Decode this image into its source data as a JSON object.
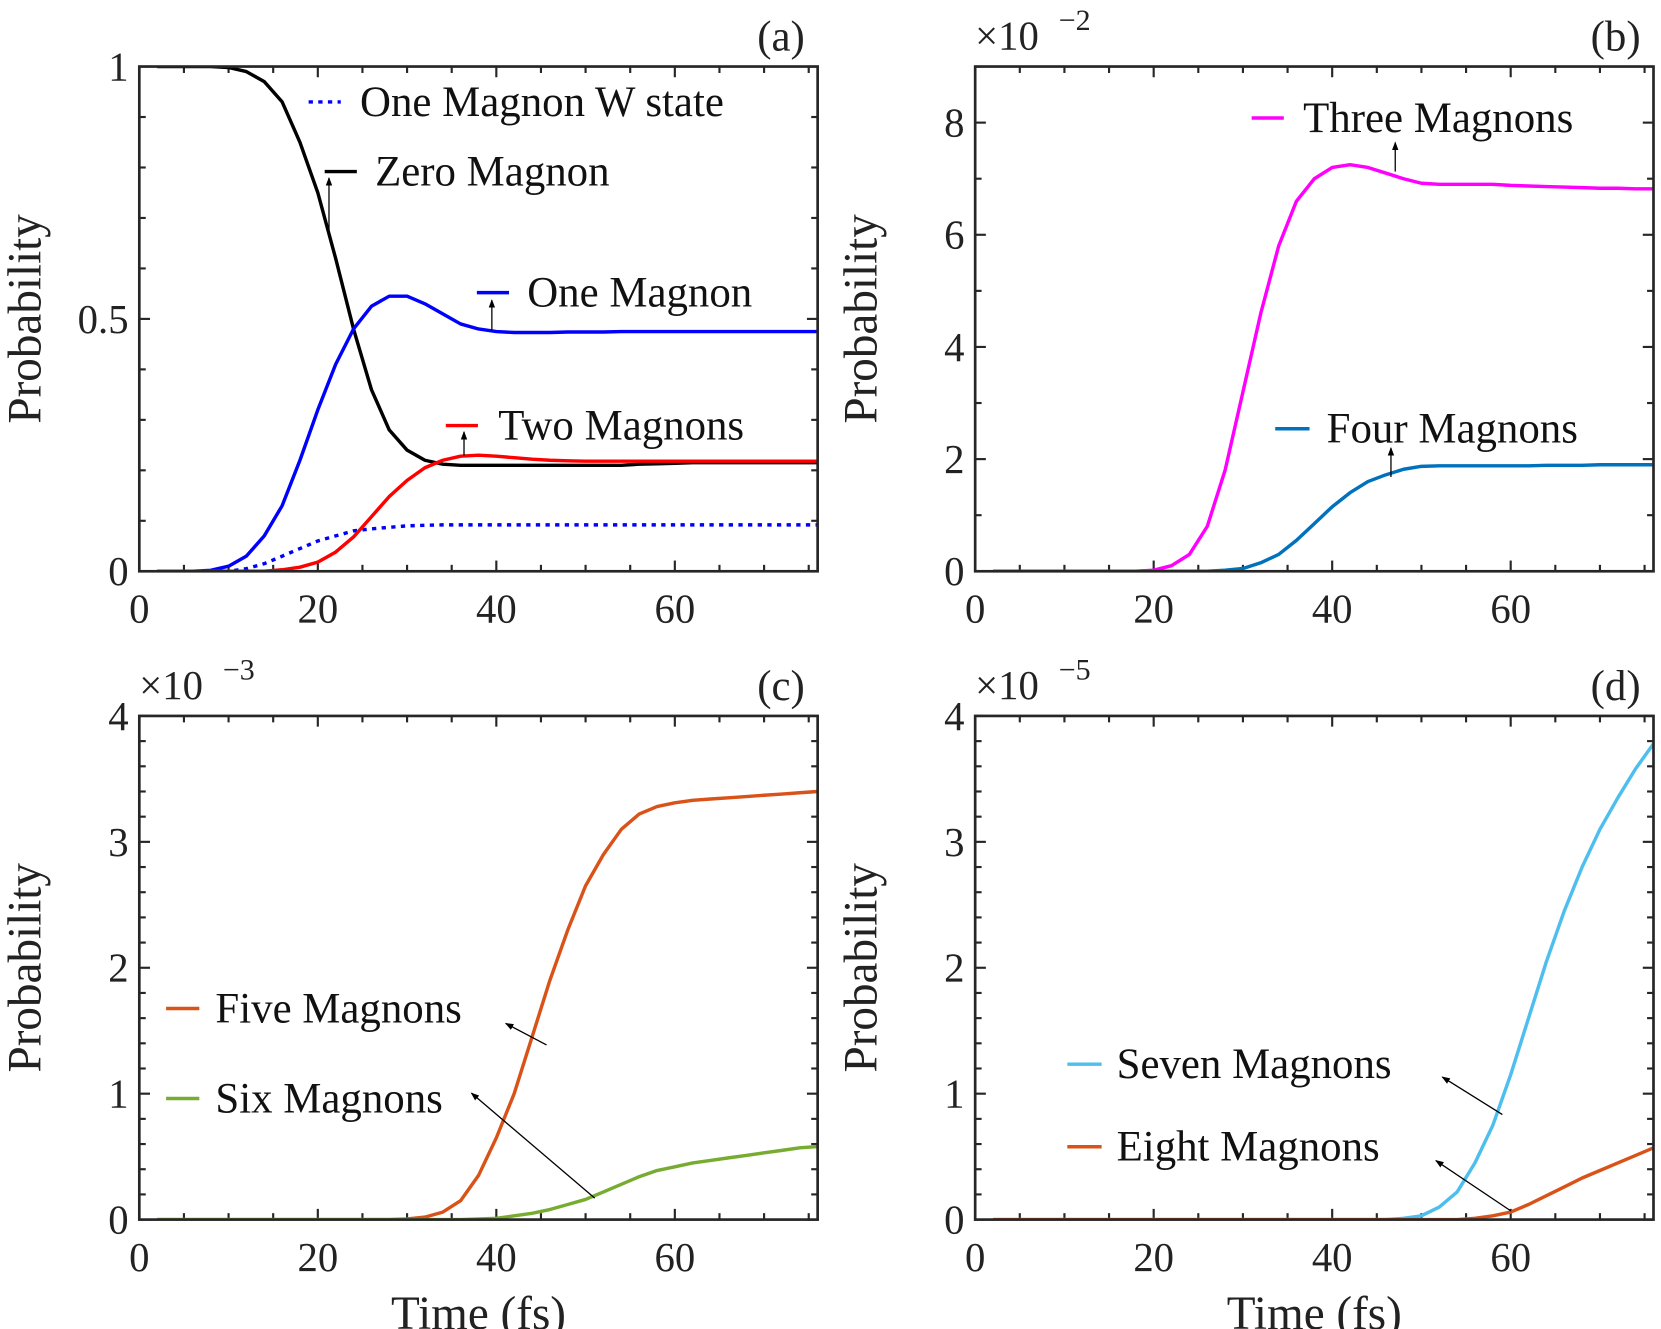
{
  "chart_data": [
    {
      "panel": "(a)",
      "type": "line",
      "xlabel": "",
      "ylabel": "Probability",
      "y_multiplier": "",
      "xlim": [
        0,
        76
      ],
      "ylim": [
        0,
        1
      ],
      "xticks": [
        0,
        20,
        40,
        60
      ],
      "xtick_labels": [
        "0",
        "20",
        "40",
        "60"
      ],
      "yticks": [
        0,
        0.5,
        1
      ],
      "ytick_labels": [
        "0",
        "0.5",
        "1"
      ],
      "yminor": 0.1,
      "x": [
        2,
        4,
        6,
        8,
        10,
        12,
        14,
        16,
        18,
        20,
        22,
        24,
        26,
        28,
        30,
        32,
        34,
        36,
        38,
        40,
        42,
        44,
        46,
        48,
        50,
        52,
        54,
        56,
        58,
        60,
        62,
        64,
        66,
        68,
        70,
        72,
        74,
        76
      ],
      "series": [
        {
          "name": "One Magnon W state",
          "color": "#0000ff",
          "style": "dotted",
          "values": [
            0,
            0,
            0,
            0,
            0,
            0.005,
            0.015,
            0.03,
            0.045,
            0.06,
            0.07,
            0.08,
            0.084,
            0.087,
            0.09,
            0.091,
            0.092,
            0.092,
            0.092,
            0.092,
            0.092,
            0.092,
            0.092,
            0.092,
            0.092,
            0.092,
            0.092,
            0.092,
            0.092,
            0.092,
            0.092,
            0.092,
            0.092,
            0.092,
            0.092,
            0.092,
            0.092,
            0.092
          ]
        },
        {
          "name": "Zero Magnon",
          "color": "#000000",
          "style": "solid",
          "values": [
            1,
            1,
            1,
            1,
            0.998,
            0.99,
            0.97,
            0.93,
            0.85,
            0.75,
            0.62,
            0.48,
            0.36,
            0.28,
            0.24,
            0.22,
            0.212,
            0.21,
            0.21,
            0.21,
            0.21,
            0.21,
            0.21,
            0.21,
            0.21,
            0.21,
            0.21,
            0.212,
            0.213,
            0.214,
            0.215,
            0.215,
            0.215,
            0.215,
            0.215,
            0.215,
            0.215,
            0.215
          ]
        },
        {
          "name": "One Magnon",
          "color": "#0000ff",
          "style": "solid",
          "values": [
            0,
            0,
            0,
            0.002,
            0.01,
            0.03,
            0.07,
            0.13,
            0.22,
            0.32,
            0.41,
            0.48,
            0.525,
            0.545,
            0.545,
            0.53,
            0.51,
            0.49,
            0.48,
            0.475,
            0.473,
            0.473,
            0.473,
            0.474,
            0.474,
            0.474,
            0.475,
            0.475,
            0.475,
            0.475,
            0.475,
            0.475,
            0.475,
            0.475,
            0.475,
            0.475,
            0.475,
            0.475
          ]
        },
        {
          "name": "Two Magnons",
          "color": "#ff0000",
          "style": "solid",
          "values": [
            0,
            0,
            0,
            0,
            0,
            0,
            0,
            0.003,
            0.008,
            0.018,
            0.038,
            0.068,
            0.108,
            0.148,
            0.18,
            0.205,
            0.22,
            0.228,
            0.23,
            0.228,
            0.225,
            0.222,
            0.22,
            0.219,
            0.218,
            0.218,
            0.218,
            0.218,
            0.218,
            0.218,
            0.218,
            0.218,
            0.218,
            0.218,
            0.218,
            0.218,
            0.218,
            0.218
          ]
        }
      ],
      "annotations": [
        "Zero Magnon",
        "One Magnon",
        "Two Magnons"
      ]
    },
    {
      "panel": "(b)",
      "type": "line",
      "xlabel": "",
      "ylabel": "Probability",
      "y_multiplier": "×10",
      "y_exponent": "−2",
      "xlim": [
        0,
        76
      ],
      "ylim": [
        0,
        9
      ],
      "xticks": [
        0,
        20,
        40,
        60
      ],
      "xtick_labels": [
        "0",
        "20",
        "40",
        "60"
      ],
      "yticks": [
        0,
        2,
        4,
        6,
        8
      ],
      "ytick_labels": [
        "0",
        "2",
        "4",
        "6",
        "8"
      ],
      "yminor": 1,
      "x": [
        2,
        4,
        6,
        8,
        10,
        12,
        14,
        16,
        18,
        20,
        22,
        24,
        26,
        28,
        30,
        32,
        34,
        36,
        38,
        40,
        42,
        44,
        46,
        48,
        50,
        52,
        54,
        56,
        58,
        60,
        62,
        64,
        66,
        68,
        70,
        72,
        74,
        76
      ],
      "series": [
        {
          "name": "Three Magnons",
          "color": "#ff00ff",
          "style": "solid",
          "values": [
            0,
            0,
            0,
            0,
            0,
            0,
            0,
            0,
            0,
            0.02,
            0.1,
            0.3,
            0.8,
            1.8,
            3.2,
            4.6,
            5.8,
            6.6,
            7.0,
            7.2,
            7.25,
            7.2,
            7.1,
            7.0,
            6.92,
            6.9,
            6.9,
            6.9,
            6.9,
            6.88,
            6.87,
            6.86,
            6.85,
            6.84,
            6.83,
            6.83,
            6.82,
            6.82
          ]
        },
        {
          "name": "Four Magnons",
          "color": "#0072bd",
          "style": "solid",
          "values": [
            0,
            0,
            0,
            0,
            0,
            0,
            0,
            0,
            0,
            0,
            0,
            0,
            0,
            0.02,
            0.05,
            0.15,
            0.3,
            0.55,
            0.85,
            1.15,
            1.4,
            1.6,
            1.72,
            1.82,
            1.87,
            1.88,
            1.88,
            1.88,
            1.88,
            1.88,
            1.88,
            1.89,
            1.89,
            1.89,
            1.9,
            1.9,
            1.9,
            1.9
          ]
        }
      ],
      "annotations": [
        "Three Magnons",
        "Four Magnons"
      ]
    },
    {
      "panel": "(c)",
      "type": "line",
      "xlabel": "Time (fs)",
      "ylabel": "Probability",
      "y_multiplier": "×10",
      "y_exponent": "−3",
      "xlim": [
        0,
        76
      ],
      "ylim": [
        0,
        4
      ],
      "xticks": [
        0,
        20,
        40,
        60
      ],
      "xtick_labels": [
        "0",
        "20",
        "40",
        "60"
      ],
      "yticks": [
        0,
        1,
        2,
        3,
        4
      ],
      "ytick_labels": [
        "0",
        "1",
        "2",
        "3",
        "4"
      ],
      "yminor": 0.2,
      "x": [
        2,
        4,
        6,
        8,
        10,
        12,
        14,
        16,
        18,
        20,
        22,
        24,
        26,
        28,
        30,
        32,
        34,
        36,
        38,
        40,
        42,
        44,
        46,
        48,
        50,
        52,
        54,
        56,
        58,
        60,
        62,
        64,
        66,
        68,
        70,
        72,
        74,
        76
      ],
      "series": [
        {
          "name": "Five Magnons",
          "color": "#d95319",
          "style": "solid",
          "values": [
            0,
            0,
            0,
            0,
            0,
            0,
            0,
            0,
            0,
            0,
            0,
            0,
            0,
            0,
            0.005,
            0.02,
            0.06,
            0.15,
            0.35,
            0.65,
            1.0,
            1.45,
            1.9,
            2.3,
            2.65,
            2.9,
            3.1,
            3.22,
            3.28,
            3.31,
            3.33,
            3.34,
            3.35,
            3.36,
            3.37,
            3.38,
            3.39,
            3.4
          ]
        },
        {
          "name": "Six Magnons",
          "color": "#77ac30",
          "style": "solid",
          "values": [
            0,
            0,
            0,
            0,
            0,
            0,
            0,
            0,
            0,
            0,
            0,
            0,
            0,
            0,
            0,
            0,
            0,
            0,
            0.005,
            0.01,
            0.03,
            0.05,
            0.08,
            0.12,
            0.16,
            0.22,
            0.28,
            0.34,
            0.39,
            0.42,
            0.45,
            0.47,
            0.49,
            0.51,
            0.53,
            0.55,
            0.57,
            0.58
          ]
        }
      ],
      "annotations": [
        "Five Magnons",
        "Six Magnons"
      ]
    },
    {
      "panel": "(d)",
      "type": "line",
      "xlabel": "Time (fs)",
      "ylabel": "Probability",
      "y_multiplier": "×10",
      "y_exponent": "−5",
      "xlim": [
        0,
        76
      ],
      "ylim": [
        0,
        4
      ],
      "xticks": [
        0,
        20,
        40,
        60
      ],
      "xtick_labels": [
        "0",
        "20",
        "40",
        "60"
      ],
      "yticks": [
        0,
        1,
        2,
        3,
        4
      ],
      "ytick_labels": [
        "0",
        "1",
        "2",
        "3",
        "4"
      ],
      "yminor": 0.2,
      "x": [
        2,
        4,
        6,
        8,
        10,
        12,
        14,
        16,
        18,
        20,
        22,
        24,
        26,
        28,
        30,
        32,
        34,
        36,
        38,
        40,
        42,
        44,
        46,
        48,
        50,
        52,
        54,
        56,
        58,
        60,
        62,
        64,
        66,
        68,
        70,
        72,
        74,
        76
      ],
      "series": [
        {
          "name": "Seven Magnons",
          "color": "#4dbeee",
          "style": "solid",
          "values": [
            0,
            0,
            0,
            0,
            0,
            0,
            0,
            0,
            0,
            0,
            0,
            0,
            0,
            0,
            0,
            0,
            0,
            0,
            0,
            0,
            0,
            0,
            0,
            0.01,
            0.03,
            0.1,
            0.22,
            0.45,
            0.75,
            1.15,
            1.6,
            2.05,
            2.45,
            2.8,
            3.1,
            3.35,
            3.58,
            3.78
          ]
        },
        {
          "name": "Eight Magnons",
          "color": "#d95319",
          "style": "solid",
          "values": [
            0,
            0,
            0,
            0,
            0,
            0,
            0,
            0,
            0,
            0,
            0,
            0,
            0,
            0,
            0,
            0,
            0,
            0,
            0,
            0,
            0,
            0,
            0,
            0,
            0,
            0,
            0,
            0.01,
            0.03,
            0.06,
            0.12,
            0.19,
            0.26,
            0.33,
            0.39,
            0.45,
            0.51,
            0.57
          ]
        }
      ],
      "annotations": [
        "Seven Magnons",
        "Eight Magnons"
      ]
    }
  ]
}
